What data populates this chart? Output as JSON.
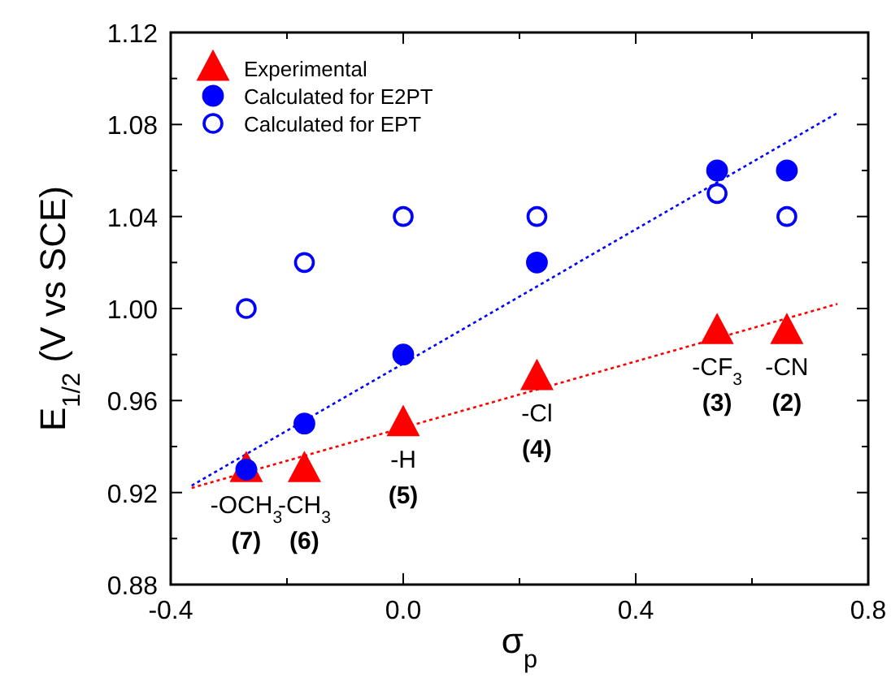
{
  "chart_data": {
    "type": "scatter",
    "xlabel": "σ$_{p}$",
    "ylabel": "E$_{1/2}$ (V vs SCE)",
    "xlim": [
      -0.4,
      0.8
    ],
    "xticks": [
      {
        "value": -0.4,
        "label": "-0.4"
      },
      {
        "value": -0.2,
        "label": null
      },
      {
        "value": 0.0,
        "label": "0.0"
      },
      {
        "value": 0.2,
        "label": null
      },
      {
        "value": 0.4,
        "label": "0.4"
      },
      {
        "value": 0.6,
        "label": null
      },
      {
        "value": 0.8,
        "label": "0.8"
      }
    ],
    "ylim": [
      0.88,
      1.12
    ],
    "yticks": [
      {
        "value": 0.88,
        "label": "0.88"
      },
      {
        "value": 0.9,
        "label": null
      },
      {
        "value": 0.92,
        "label": "0.92"
      },
      {
        "value": 0.94,
        "label": null
      },
      {
        "value": 0.96,
        "label": "0.96"
      },
      {
        "value": 0.98,
        "label": null
      },
      {
        "value": 1.0,
        "label": "1.00"
      },
      {
        "value": 1.02,
        "label": null
      },
      {
        "value": 1.04,
        "label": "1.04"
      },
      {
        "value": 1.06,
        "label": null
      },
      {
        "value": 1.08,
        "label": "1.08"
      },
      {
        "value": 1.1,
        "label": null
      },
      {
        "value": 1.12,
        "label": "1.12"
      }
    ],
    "legend": "top left",
    "grid": false,
    "series": [
      {
        "name": "Experimental",
        "color": "#ff0000",
        "marker": "triangle",
        "x": [
          -0.27,
          -0.17,
          0.0,
          0.23,
          0.54,
          0.66
        ],
        "values": [
          0.93,
          0.93,
          0.95,
          0.97,
          0.99,
          0.99
        ]
      },
      {
        "name": "Calculated for E2PT",
        "color": "#0000ff",
        "marker": "circle",
        "x": [
          -0.27,
          -0.17,
          0.0,
          0.23,
          0.54,
          0.66
        ],
        "values": [
          0.93,
          0.95,
          0.98,
          1.02,
          1.06,
          1.06
        ]
      },
      {
        "name": "Calculated for EPT",
        "color": "#0000ff",
        "marker": "circle",
        "x": [
          -0.27,
          -0.17,
          0.0,
          0.23,
          0.54,
          0.66
        ],
        "values": [
          1.0,
          1.02,
          1.04,
          1.04,
          1.05,
          1.04
        ]
      },
      {
        "type": "line",
        "color": "#ff0000",
        "line_style": "dotted",
        "marker": "none",
        "x": [
          -0.364,
          0.747
        ],
        "values": [
          0.922,
          1.002
        ]
      },
      {
        "type": "line",
        "color": "#0000ff",
        "line_style": "dotted",
        "marker": "none",
        "x": [
          -0.364,
          0.747
        ],
        "values": [
          0.923,
          1.085
        ]
      }
    ],
    "annotations": [
      {
        "text": "-OCH$_{3}$",
        "x": -0.27,
        "y": 0.93
      },
      {
        "text": "(7)",
        "x": -0.27,
        "y": 0.93
      },
      {
        "text": "-CH$_{3}$",
        "x": -0.17,
        "y": 0.93
      },
      {
        "text": "(6)",
        "x": -0.17,
        "y": 0.93
      },
      {
        "text": "-H",
        "x": 0.0,
        "y": 0.95
      },
      {
        "text": "(5)",
        "x": 0.0,
        "y": 0.95
      },
      {
        "text": "-Cl",
        "x": 0.23,
        "y": 0.97
      },
      {
        "text": "(4)",
        "x": 0.23,
        "y": 0.97
      },
      {
        "text": "-CF$_{3}$",
        "x": 0.54,
        "y": 0.99
      },
      {
        "text": "(3)",
        "x": 0.54,
        "y": 0.99
      },
      {
        "text": "-CN",
        "x": 0.66,
        "y": 0.99
      },
      {
        "text": "(2)",
        "x": 0.66,
        "y": 0.99
      }
    ]
  }
}
